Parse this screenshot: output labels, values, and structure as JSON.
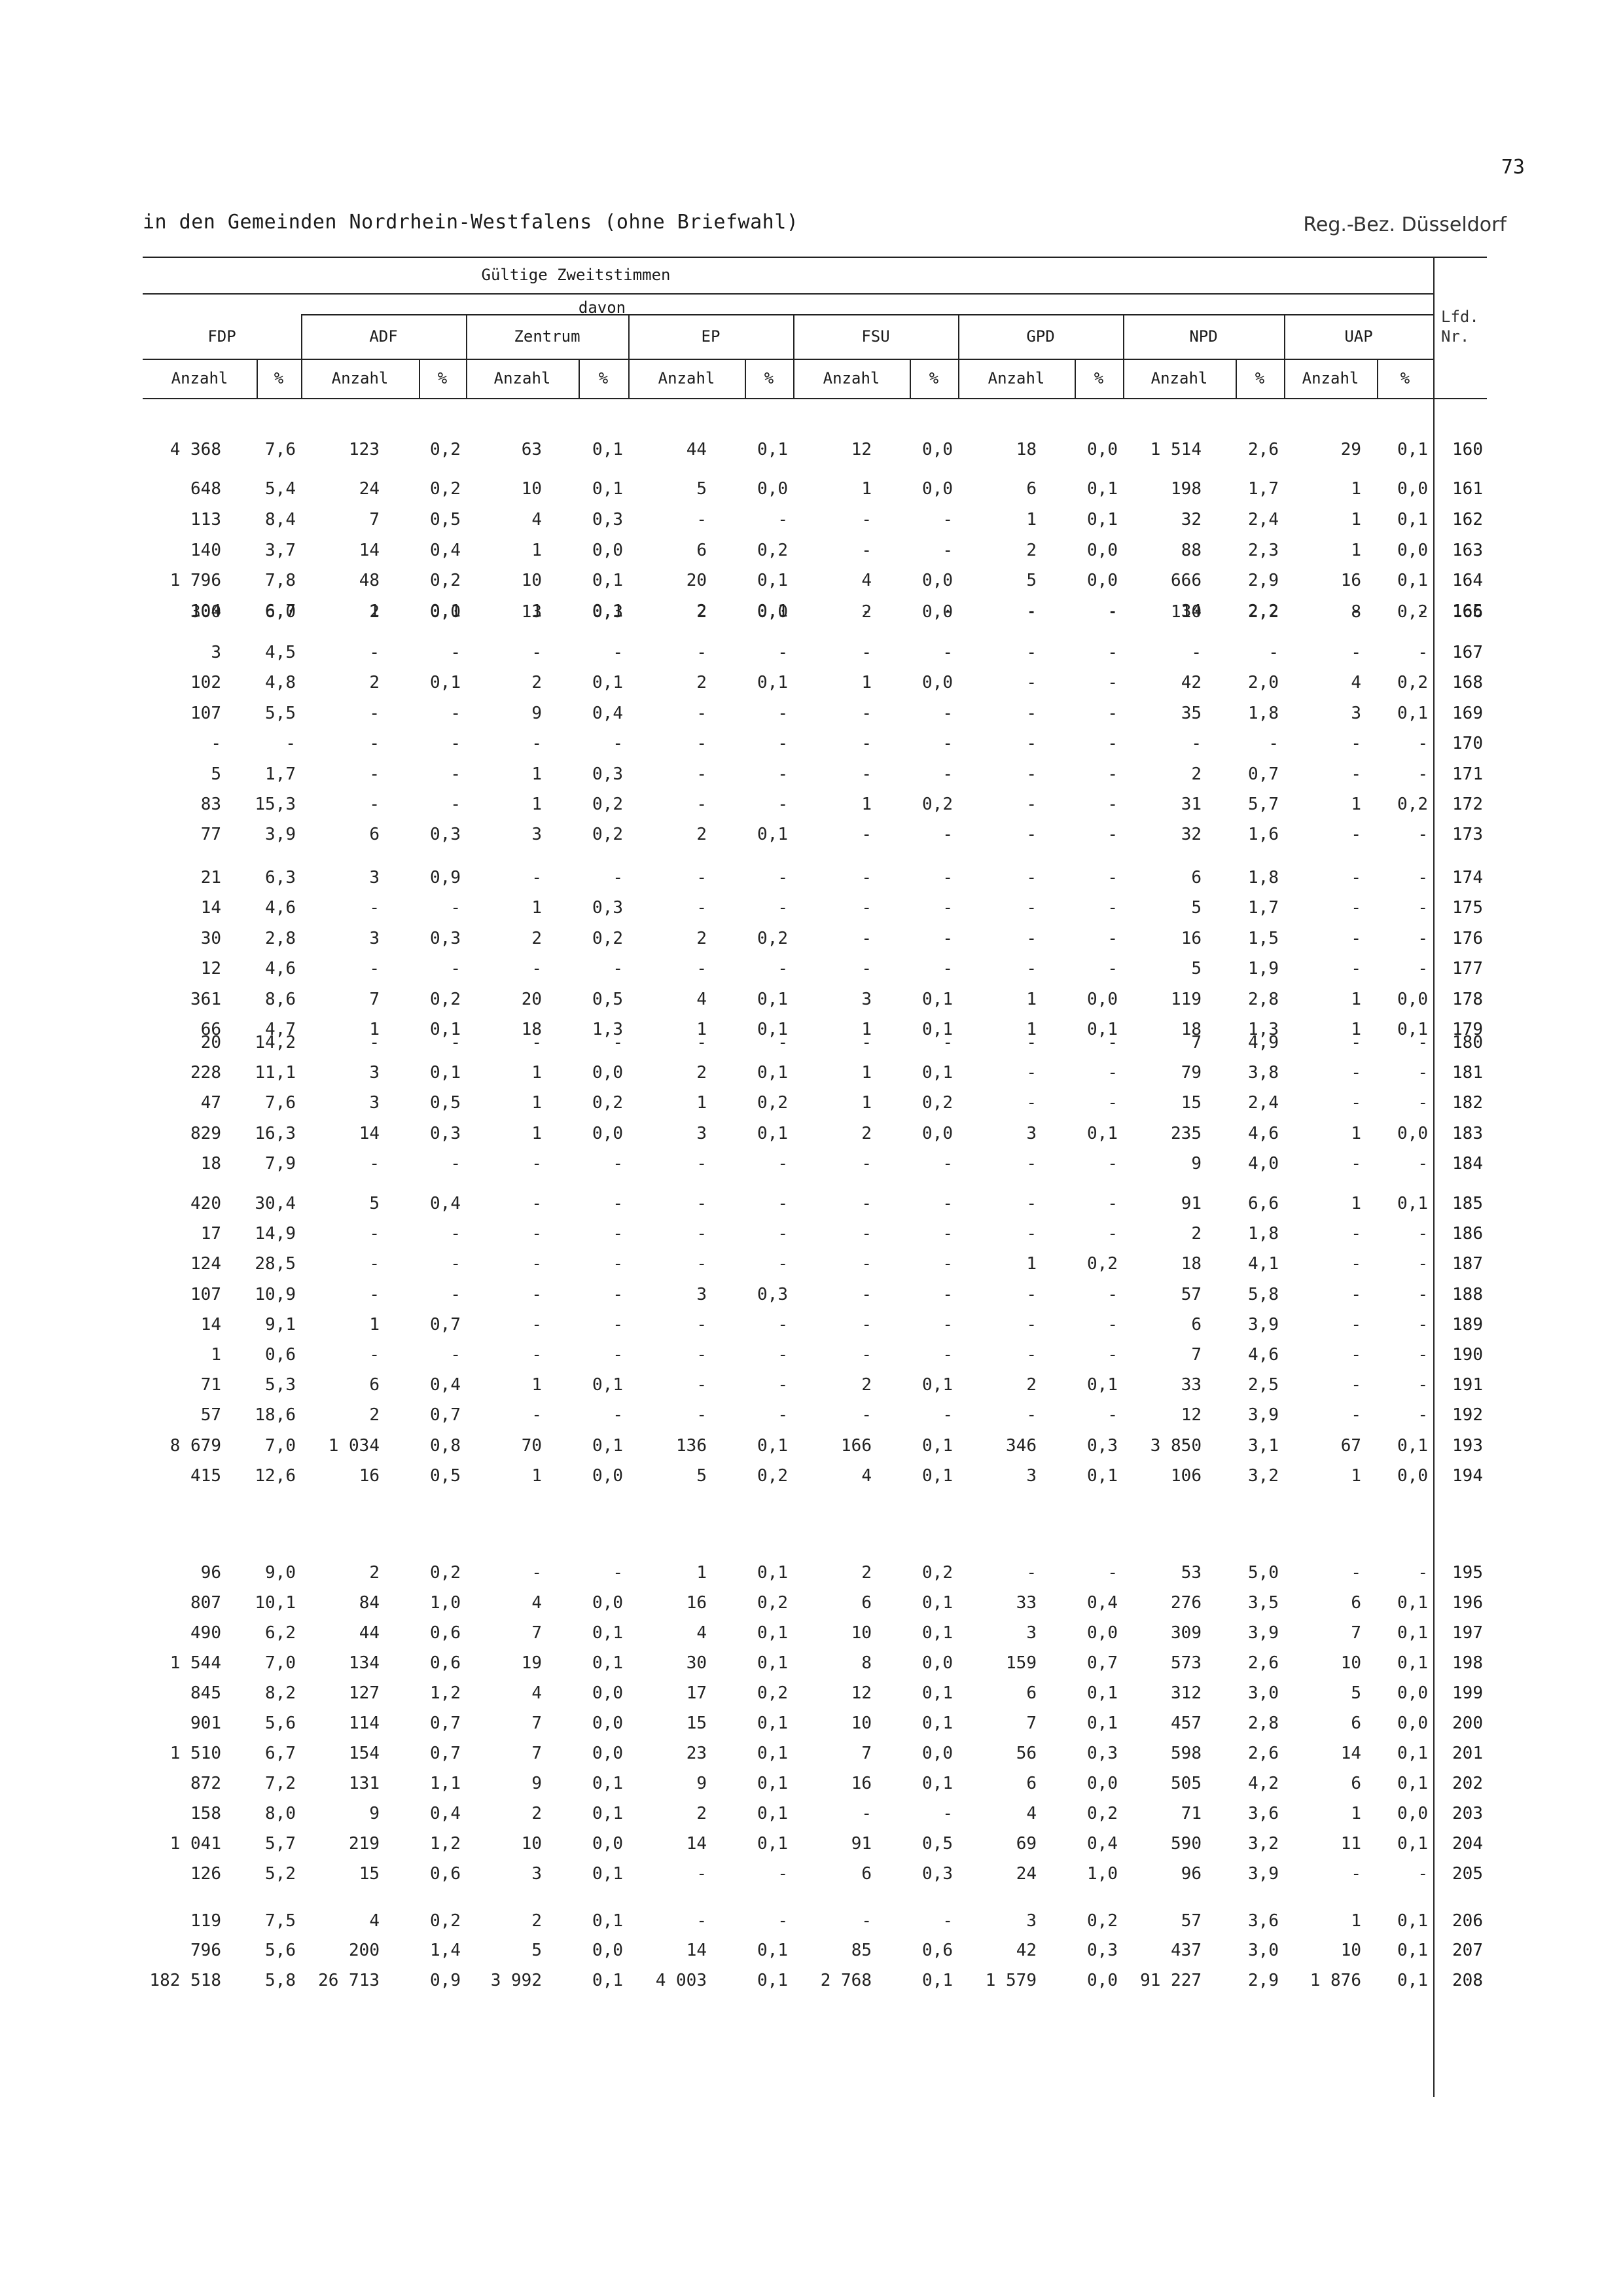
{
  "page_number": "73",
  "title": "in den Gemeinden Nordrhein-Westfalens (ohne Briefwahl)",
  "region": "Reg.-Bez. Düsseldorf",
  "header": {
    "group": "Gültige Zweitstimmen",
    "sub": "davon",
    "lfd_line1": "Lfd.",
    "lfd_line2": "Nr.",
    "parties": [
      "FDP",
      "ADF",
      "Zentrum",
      "EP",
      "FSU",
      "GPD",
      "NPD",
      "UAP"
    ],
    "count_label": "Anzahl",
    "pct_label": "%"
  },
  "rows": [
    [
      "4 368",
      "7,6",
      "123",
      "0,2",
      "63",
      "0,1",
      "44",
      "0,1",
      "12",
      "0,0",
      "18",
      "0,0",
      "1 514",
      "2,6",
      "29",
      "0,1",
      "160"
    ],
    [
      "648",
      "5,4",
      "24",
      "0,2",
      "10",
      "0,1",
      "5",
      "0,0",
      "1",
      "0,0",
      "6",
      "0,1",
      "198",
      "1,7",
      "1",
      "0,0",
      "161"
    ],
    [
      "113",
      "8,4",
      "7",
      "0,5",
      "4",
      "0,3",
      "-",
      "-",
      "-",
      "-",
      "1",
      "0,1",
      "32",
      "2,4",
      "1",
      "0,1",
      "162"
    ],
    [
      "140",
      "3,7",
      "14",
      "0,4",
      "1",
      "0,0",
      "6",
      "0,2",
      "-",
      "-",
      "2",
      "0,0",
      "88",
      "2,3",
      "1",
      "0,0",
      "163"
    ],
    [
      "1 796",
      "7,8",
      "48",
      "0,2",
      "10",
      "0,1",
      "20",
      "0,1",
      "4",
      "0,0",
      "5",
      "0,0",
      "666",
      "2,9",
      "16",
      "0,1",
      "164"
    ],
    [
      "104",
      "6,7",
      "1",
      "0,1",
      "1",
      "0,1",
      "2",
      "0,1",
      "-",
      "-",
      "-",
      "-",
      "34",
      "2,2",
      "-",
      "-",
      "165"
    ],
    [
      "300",
      "6,0",
      "2",
      "0,0",
      "13",
      "0,3",
      "2",
      "0,0",
      "2",
      "0,0",
      "-",
      "-",
      "110",
      "2,2",
      "8",
      "0,2",
      "166"
    ],
    [
      "3",
      "4,5",
      "-",
      "-",
      "-",
      "-",
      "-",
      "-",
      "-",
      "-",
      "-",
      "-",
      "-",
      "-",
      "-",
      "-",
      "167"
    ],
    [
      "102",
      "4,8",
      "2",
      "0,1",
      "2",
      "0,1",
      "2",
      "0,1",
      "1",
      "0,0",
      "-",
      "-",
      "42",
      "2,0",
      "4",
      "0,2",
      "168"
    ],
    [
      "107",
      "5,5",
      "-",
      "-",
      "9",
      "0,4",
      "-",
      "-",
      "-",
      "-",
      "-",
      "-",
      "35",
      "1,8",
      "3",
      "0,1",
      "169"
    ],
    [
      "-",
      "-",
      "-",
      "-",
      "-",
      "-",
      "-",
      "-",
      "-",
      "-",
      "-",
      "-",
      "-",
      "-",
      "-",
      "-",
      "170"
    ],
    [
      "5",
      "1,7",
      "-",
      "-",
      "1",
      "0,3",
      "-",
      "-",
      "-",
      "-",
      "-",
      "-",
      "2",
      "0,7",
      "-",
      "-",
      "171"
    ],
    [
      "83",
      "15,3",
      "-",
      "-",
      "1",
      "0,2",
      "-",
      "-",
      "1",
      "0,2",
      "-",
      "-",
      "31",
      "5,7",
      "1",
      "0,2",
      "172"
    ],
    [
      "77",
      "3,9",
      "6",
      "0,3",
      "3",
      "0,2",
      "2",
      "0,1",
      "-",
      "-",
      "-",
      "-",
      "32",
      "1,6",
      "-",
      "-",
      "173"
    ],
    [
      "21",
      "6,3",
      "3",
      "0,9",
      "-",
      "-",
      "-",
      "-",
      "-",
      "-",
      "-",
      "-",
      "6",
      "1,8",
      "-",
      "-",
      "174"
    ],
    [
      "14",
      "4,6",
      "-",
      "-",
      "1",
      "0,3",
      "-",
      "-",
      "-",
      "-",
      "-",
      "-",
      "5",
      "1,7",
      "-",
      "-",
      "175"
    ],
    [
      "30",
      "2,8",
      "3",
      "0,3",
      "2",
      "0,2",
      "2",
      "0,2",
      "-",
      "-",
      "-",
      "-",
      "16",
      "1,5",
      "-",
      "-",
      "176"
    ],
    [
      "12",
      "4,6",
      "-",
      "-",
      "-",
      "-",
      "-",
      "-",
      "-",
      "-",
      "-",
      "-",
      "5",
      "1,9",
      "-",
      "-",
      "177"
    ],
    [
      "361",
      "8,6",
      "7",
      "0,2",
      "20",
      "0,5",
      "4",
      "0,1",
      "3",
      "0,1",
      "1",
      "0,0",
      "119",
      "2,8",
      "1",
      "0,0",
      "178"
    ],
    [
      "66",
      "4,7",
      "1",
      "0,1",
      "18",
      "1,3",
      "1",
      "0,1",
      "1",
      "0,1",
      "1",
      "0,1",
      "18",
      "1,3",
      "1",
      "0,1",
      "179"
    ],
    [
      "20",
      "14,2",
      "-",
      "-",
      "-",
      "-",
      "-",
      "-",
      "-",
      "-",
      "-",
      "-",
      "7",
      "4,9",
      "-",
      "-",
      "180"
    ],
    [
      "228",
      "11,1",
      "3",
      "0,1",
      "1",
      "0,0",
      "2",
      "0,1",
      "1",
      "0,1",
      "-",
      "-",
      "79",
      "3,8",
      "-",
      "-",
      "181"
    ],
    [
      "47",
      "7,6",
      "3",
      "0,5",
      "1",
      "0,2",
      "1",
      "0,2",
      "1",
      "0,2",
      "-",
      "-",
      "15",
      "2,4",
      "-",
      "-",
      "182"
    ],
    [
      "829",
      "16,3",
      "14",
      "0,3",
      "1",
      "0,0",
      "3",
      "0,1",
      "2",
      "0,0",
      "3",
      "0,1",
      "235",
      "4,6",
      "1",
      "0,0",
      "183"
    ],
    [
      "18",
      "7,9",
      "-",
      "-",
      "-",
      "-",
      "-",
      "-",
      "-",
      "-",
      "-",
      "-",
      "9",
      "4,0",
      "-",
      "-",
      "184"
    ],
    [
      "420",
      "30,4",
      "5",
      "0,4",
      "-",
      "-",
      "-",
      "-",
      "-",
      "-",
      "-",
      "-",
      "91",
      "6,6",
      "1",
      "0,1",
      "185"
    ],
    [
      "17",
      "14,9",
      "-",
      "-",
      "-",
      "-",
      "-",
      "-",
      "-",
      "-",
      "-",
      "-",
      "2",
      "1,8",
      "-",
      "-",
      "186"
    ],
    [
      "124",
      "28,5",
      "-",
      "-",
      "-",
      "-",
      "-",
      "-",
      "-",
      "-",
      "1",
      "0,2",
      "18",
      "4,1",
      "-",
      "-",
      "187"
    ],
    [
      "107",
      "10,9",
      "-",
      "-",
      "-",
      "-",
      "3",
      "0,3",
      "-",
      "-",
      "-",
      "-",
      "57",
      "5,8",
      "-",
      "-",
      "188"
    ],
    [
      "14",
      "9,1",
      "1",
      "0,7",
      "-",
      "-",
      "-",
      "-",
      "-",
      "-",
      "-",
      "-",
      "6",
      "3,9",
      "-",
      "-",
      "189"
    ],
    [
      "1",
      "0,6",
      "-",
      "-",
      "-",
      "-",
      "-",
      "-",
      "-",
      "-",
      "-",
      "-",
      "7",
      "4,6",
      "-",
      "-",
      "190"
    ],
    [
      "71",
      "5,3",
      "6",
      "0,4",
      "1",
      "0,1",
      "-",
      "-",
      "2",
      "0,1",
      "2",
      "0,1",
      "33",
      "2,5",
      "-",
      "-",
      "191"
    ],
    [
      "57",
      "18,6",
      "2",
      "0,7",
      "-",
      "-",
      "-",
      "-",
      "-",
      "-",
      "-",
      "-",
      "12",
      "3,9",
      "-",
      "-",
      "192"
    ],
    [
      "8 679",
      "7,0",
      "1 034",
      "0,8",
      "70",
      "0,1",
      "136",
      "0,1",
      "166",
      "0,1",
      "346",
      "0,3",
      "3 850",
      "3,1",
      "67",
      "0,1",
      "193"
    ],
    [
      "415",
      "12,6",
      "16",
      "0,5",
      "1",
      "0,0",
      "5",
      "0,2",
      "4",
      "0,1",
      "3",
      "0,1",
      "106",
      "3,2",
      "1",
      "0,0",
      "194"
    ],
    [
      "96",
      "9,0",
      "2",
      "0,2",
      "-",
      "-",
      "1",
      "0,1",
      "2",
      "0,2",
      "-",
      "-",
      "53",
      "5,0",
      "-",
      "-",
      "195"
    ],
    [
      "807",
      "10,1",
      "84",
      "1,0",
      "4",
      "0,0",
      "16",
      "0,2",
      "6",
      "0,1",
      "33",
      "0,4",
      "276",
      "3,5",
      "6",
      "0,1",
      "196"
    ],
    [
      "490",
      "6,2",
      "44",
      "0,6",
      "7",
      "0,1",
      "4",
      "0,1",
      "10",
      "0,1",
      "3",
      "0,0",
      "309",
      "3,9",
      "7",
      "0,1",
      "197"
    ],
    [
      "1 544",
      "7,0",
      "134",
      "0,6",
      "19",
      "0,1",
      "30",
      "0,1",
      "8",
      "0,0",
      "159",
      "0,7",
      "573",
      "2,6",
      "10",
      "0,1",
      "198"
    ],
    [
      "845",
      "8,2",
      "127",
      "1,2",
      "4",
      "0,0",
      "17",
      "0,2",
      "12",
      "0,1",
      "6",
      "0,1",
      "312",
      "3,0",
      "5",
      "0,0",
      "199"
    ],
    [
      "901",
      "5,6",
      "114",
      "0,7",
      "7",
      "0,0",
      "15",
      "0,1",
      "10",
      "0,1",
      "7",
      "0,1",
      "457",
      "2,8",
      "6",
      "0,0",
      "200"
    ],
    [
      "1 510",
      "6,7",
      "154",
      "0,7",
      "7",
      "0,0",
      "23",
      "0,1",
      "7",
      "0,0",
      "56",
      "0,3",
      "598",
      "2,6",
      "14",
      "0,1",
      "201"
    ],
    [
      "872",
      "7,2",
      "131",
      "1,1",
      "9",
      "0,1",
      "9",
      "0,1",
      "16",
      "0,1",
      "6",
      "0,0",
      "505",
      "4,2",
      "6",
      "0,1",
      "202"
    ],
    [
      "158",
      "8,0",
      "9",
      "0,4",
      "2",
      "0,1",
      "2",
      "0,1",
      "-",
      "-",
      "4",
      "0,2",
      "71",
      "3,6",
      "1",
      "0,0",
      "203"
    ],
    [
      "1 041",
      "5,7",
      "219",
      "1,2",
      "10",
      "0,0",
      "14",
      "0,1",
      "91",
      "0,5",
      "69",
      "0,4",
      "590",
      "3,2",
      "11",
      "0,1",
      "204"
    ],
    [
      "126",
      "5,2",
      "15",
      "0,6",
      "3",
      "0,1",
      "-",
      "-",
      "6",
      "0,3",
      "24",
      "1,0",
      "96",
      "3,9",
      "-",
      "-",
      "205"
    ],
    [
      "119",
      "7,5",
      "4",
      "0,2",
      "2",
      "0,1",
      "-",
      "-",
      "-",
      "-",
      "3",
      "0,2",
      "57",
      "3,6",
      "1",
      "0,1",
      "206"
    ],
    [
      "796",
      "5,6",
      "200",
      "1,4",
      "5",
      "0,0",
      "14",
      "0,1",
      "85",
      "0,6",
      "42",
      "0,3",
      "437",
      "3,0",
      "10",
      "0,1",
      "207"
    ],
    [
      "182 518",
      "5,8",
      "26 713",
      "0,9",
      "3 992",
      "0,1",
      "4 003",
      "0,1",
      "2 768",
      "0,1",
      "1 579",
      "0,0",
      "91 227",
      "2,9",
      "1 876",
      "0,1",
      "208"
    ]
  ]
}
